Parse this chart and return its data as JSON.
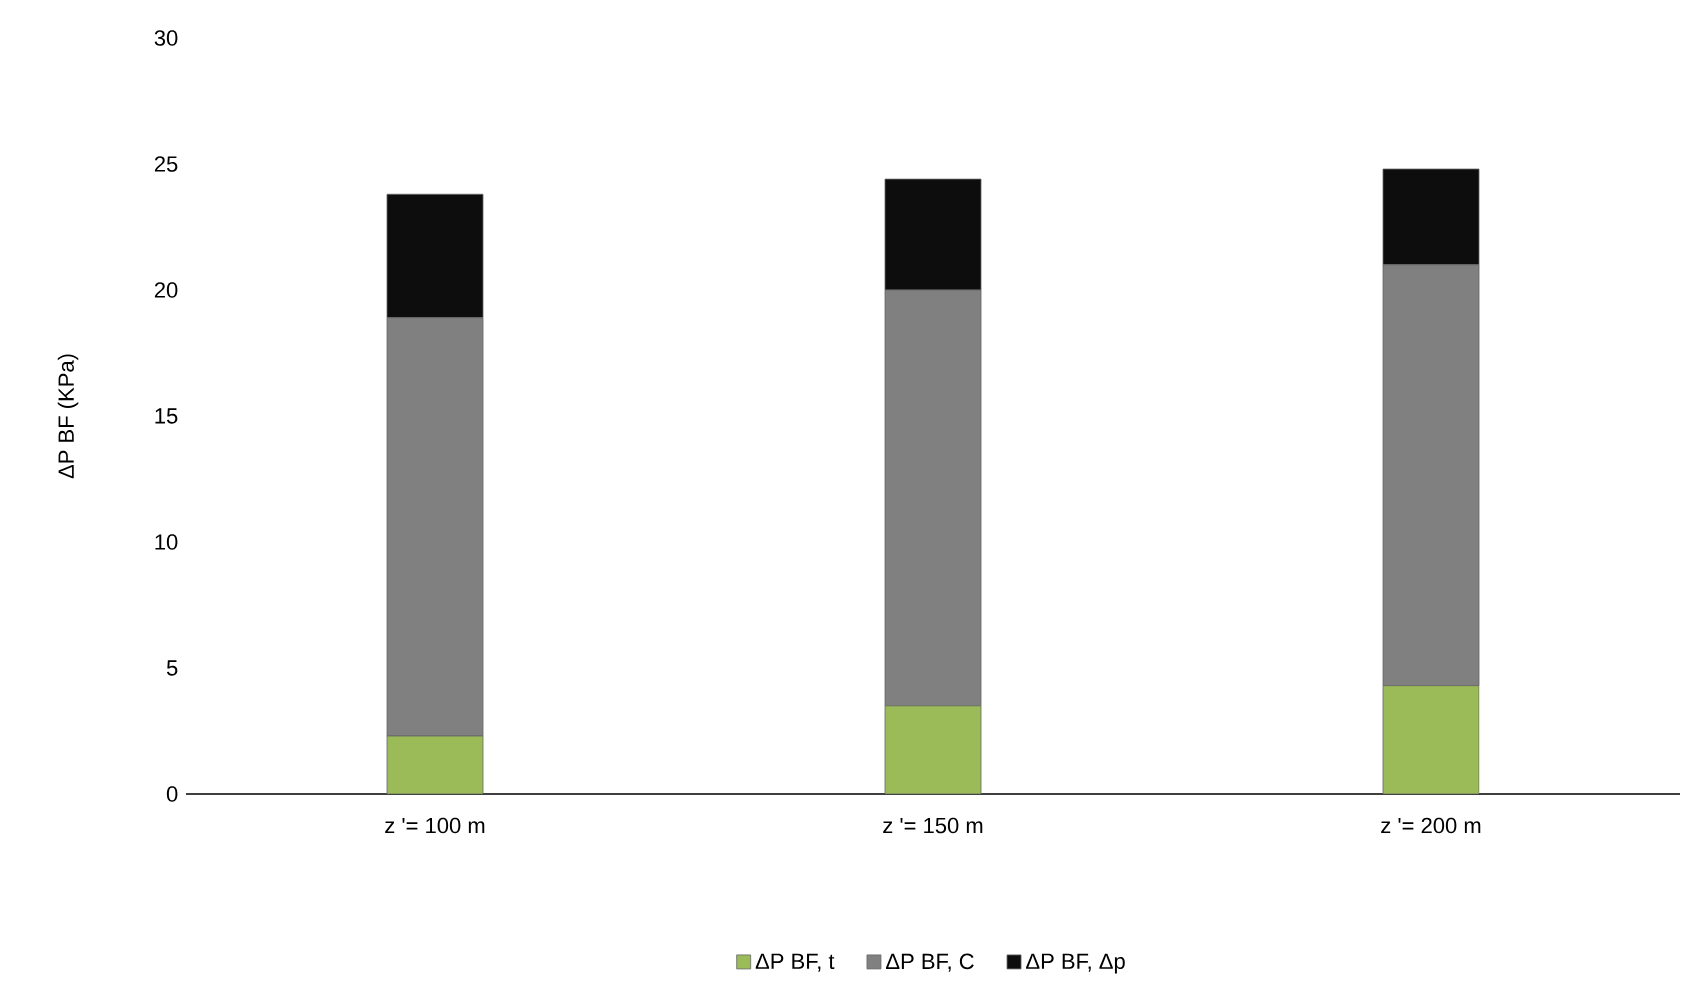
{
  "chart_data": {
    "type": "bar",
    "stacked": true,
    "ylabel": "ΔP BF (KPa)",
    "categories": [
      "z '= 100 m",
      "z '= 150 m",
      "z '= 200 m"
    ],
    "series": [
      {
        "name": "ΔP BF, t",
        "color": "#9bbb59",
        "values": [
          2.3,
          3.5,
          4.3
        ]
      },
      {
        "name": "ΔP BF, C",
        "color": "#808080",
        "values": [
          16.6,
          16.5,
          16.7
        ]
      },
      {
        "name": "ΔP BF, Δp",
        "color": "#0d0d0d",
        "values": [
          4.9,
          4.4,
          3.8
        ]
      }
    ],
    "ylim": [
      0,
      30
    ],
    "yticks": [
      0,
      5,
      10,
      15,
      20,
      25,
      30
    ],
    "grid": false,
    "legend": "bottom"
  }
}
